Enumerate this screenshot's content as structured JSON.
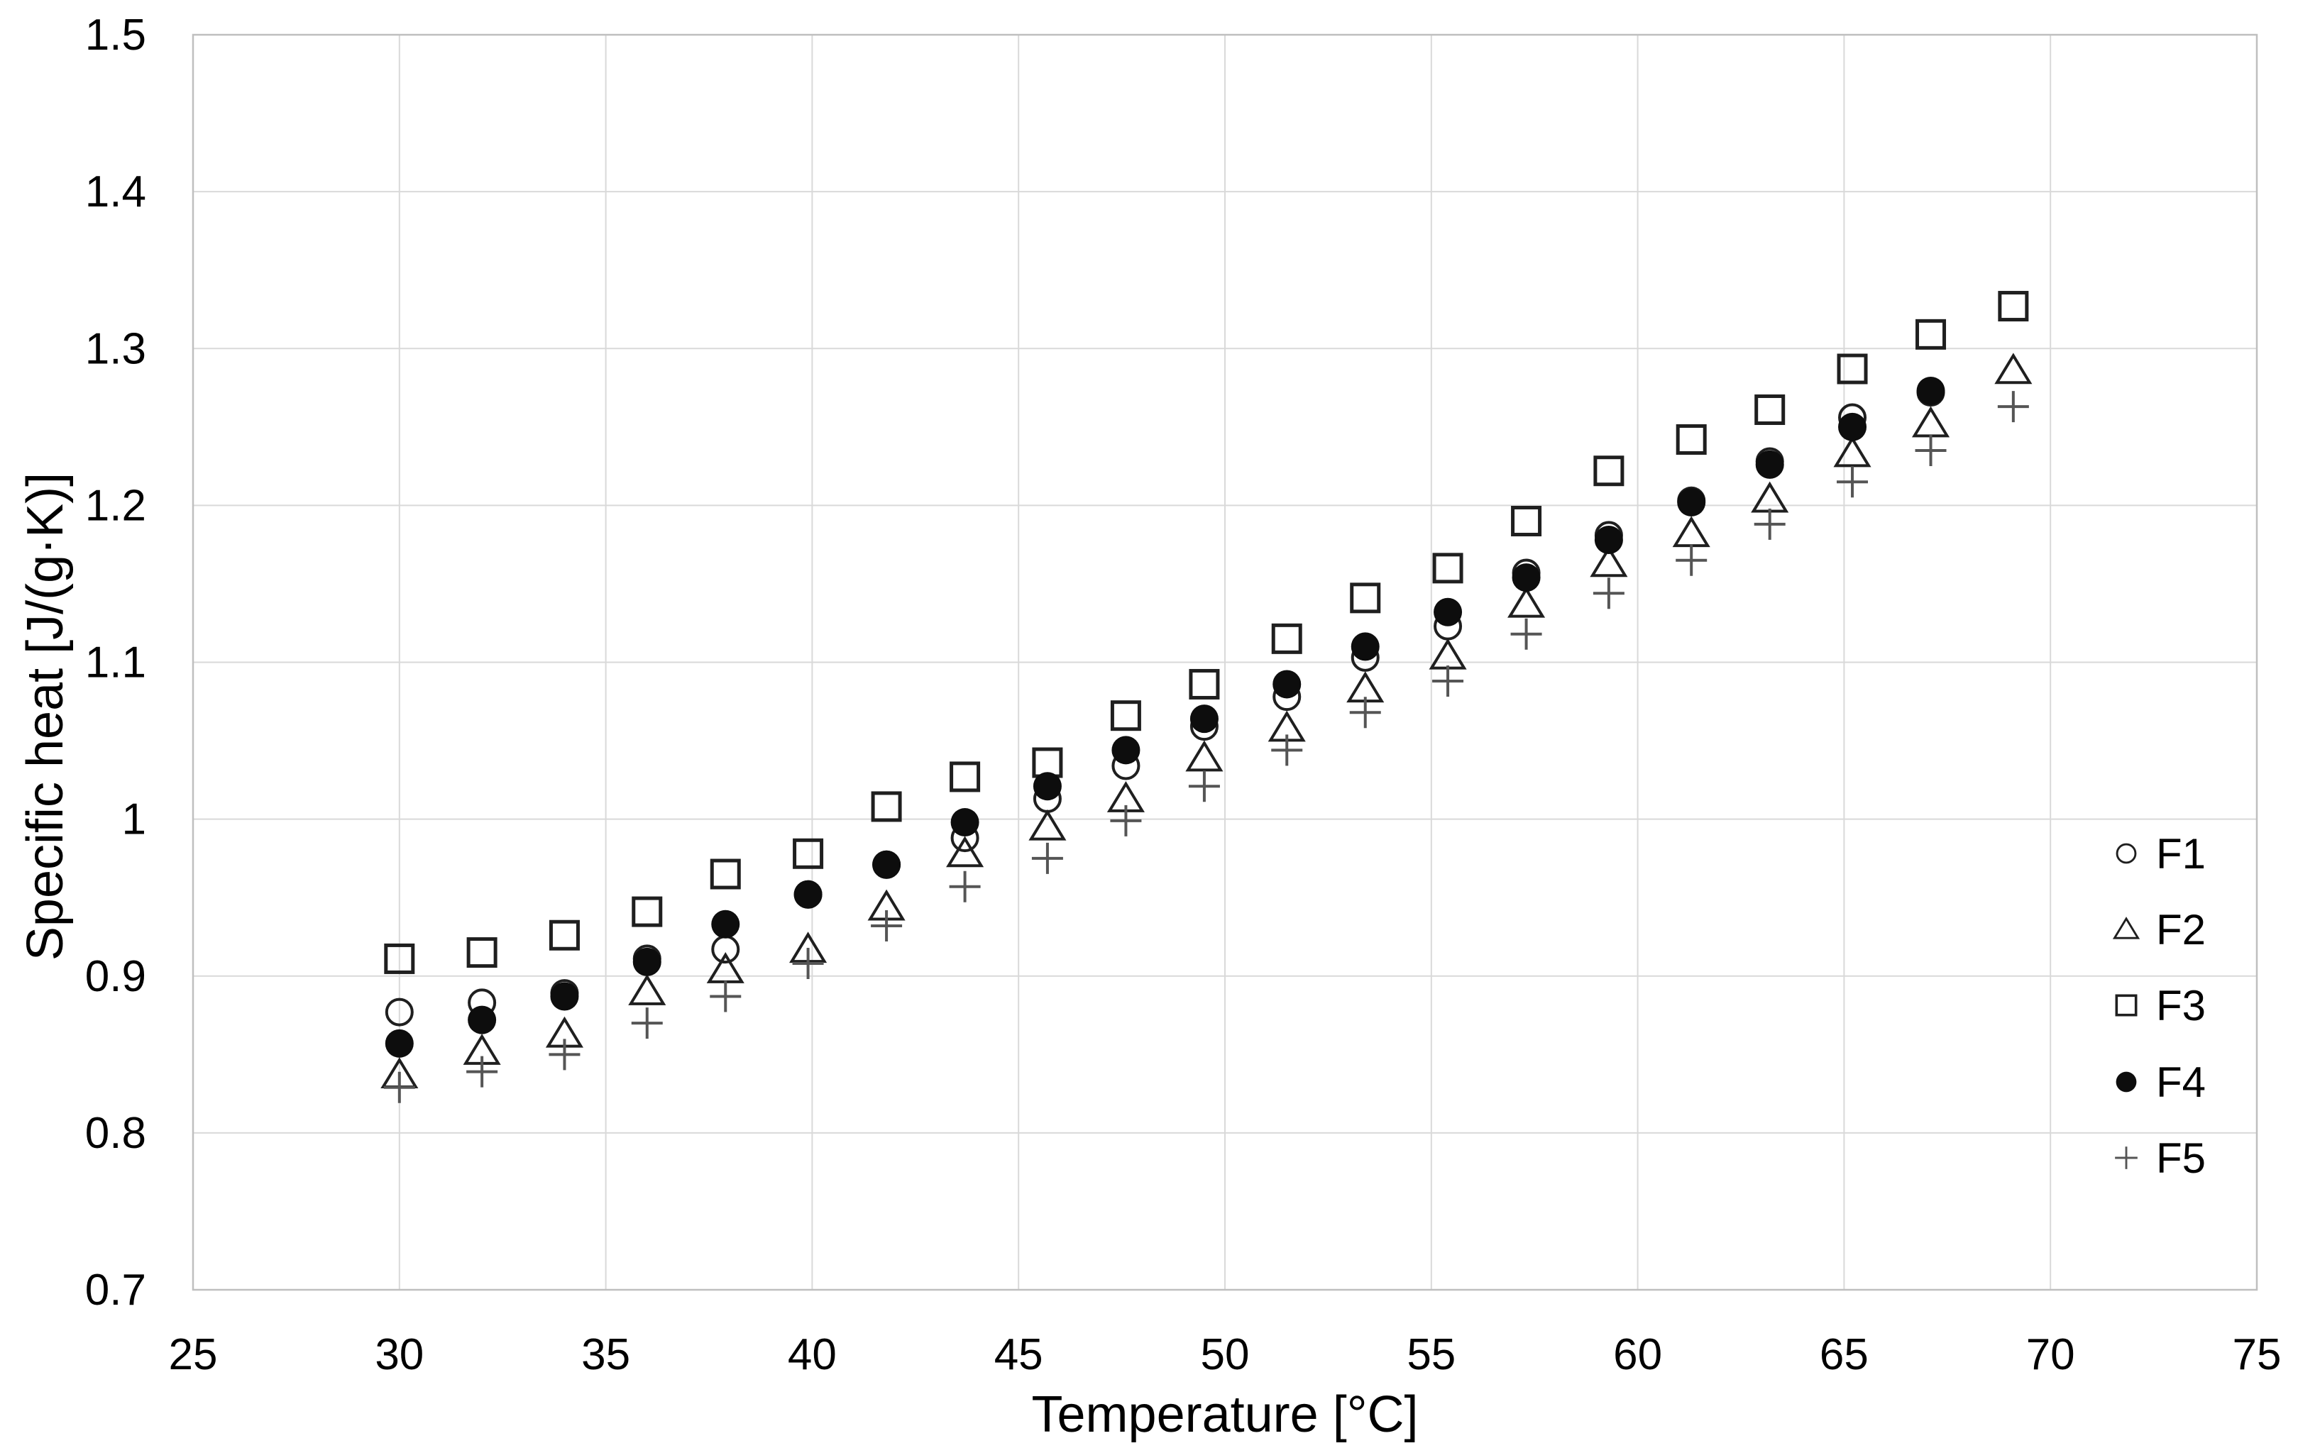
{
  "chart_data": {
    "type": "scatter",
    "title": "",
    "xlabel": "Temperature [°C]",
    "ylabel": "Specific heat [J/(g·K)]",
    "xlim": [
      25,
      75
    ],
    "ylim": [
      0.7,
      1.5
    ],
    "grid": true,
    "legend_position": "right-inside",
    "xticks": [
      {
        "v": 25,
        "label": "25"
      },
      {
        "v": 30,
        "label": "30"
      },
      {
        "v": 35,
        "label": "35"
      },
      {
        "v": 40,
        "label": "40"
      },
      {
        "v": 45,
        "label": "45"
      },
      {
        "v": 50,
        "label": "50"
      },
      {
        "v": 55,
        "label": "55"
      },
      {
        "v": 60,
        "label": "60"
      },
      {
        "v": 65,
        "label": "65"
      },
      {
        "v": 70,
        "label": "70"
      },
      {
        "v": 75,
        "label": "75"
      }
    ],
    "yticks": [
      {
        "v": 0.7,
        "label": "0.7"
      },
      {
        "v": 0.8,
        "label": "0.8"
      },
      {
        "v": 0.9,
        "label": "0.9"
      },
      {
        "v": 1.0,
        "label": "1"
      },
      {
        "v": 1.1,
        "label": "1.1"
      },
      {
        "v": 1.2,
        "label": "1.2"
      },
      {
        "v": 1.3,
        "label": "1.3"
      },
      {
        "v": 1.4,
        "label": "1.4"
      },
      {
        "v": 1.5,
        "label": "1.5"
      }
    ],
    "x": [
      30.0,
      32.0,
      34.0,
      36.0,
      37.9,
      39.9,
      41.8,
      43.7,
      45.7,
      47.6,
      49.5,
      51.5,
      53.4,
      55.4,
      57.3,
      59.3,
      61.3,
      63.2,
      65.2,
      67.1,
      69.1
    ],
    "series": [
      {
        "name": "F1",
        "marker": "open-circle",
        "values": [
          0.877,
          0.883,
          0.889,
          0.911,
          0.917,
          0.952,
          0.971,
          0.988,
          1.013,
          1.034,
          1.059,
          1.078,
          1.103,
          1.123,
          1.157,
          1.181,
          1.203,
          1.228,
          1.256,
          1.272,
          null
        ]
      },
      {
        "name": "F2",
        "marker": "open-triangle",
        "values": [
          0.837,
          0.852,
          0.863,
          0.89,
          0.904,
          0.917,
          0.944,
          0.978,
          0.995,
          1.013,
          1.039,
          1.058,
          1.083,
          1.104,
          1.137,
          1.163,
          1.182,
          1.204,
          1.233,
          1.252,
          1.286
        ]
      },
      {
        "name": "F3",
        "marker": "open-square",
        "values": [
          0.911,
          0.915,
          0.926,
          0.941,
          0.965,
          0.978,
          1.008,
          1.027,
          1.036,
          1.066,
          1.086,
          1.115,
          1.141,
          1.16,
          1.19,
          1.222,
          1.242,
          1.261,
          1.287,
          1.309,
          1.327
        ]
      },
      {
        "name": "F4",
        "marker": "filled-circle",
        "values": [
          0.857,
          0.872,
          0.887,
          0.909,
          0.933,
          0.952,
          0.971,
          0.998,
          1.021,
          1.044,
          1.064,
          1.086,
          1.11,
          1.132,
          1.154,
          1.178,
          1.202,
          1.226,
          1.25,
          1.273,
          null
        ]
      },
      {
        "name": "F5",
        "marker": "plus",
        "values": [
          0.829,
          0.839,
          0.85,
          0.87,
          0.887,
          0.908,
          0.932,
          0.957,
          0.975,
          0.999,
          1.021,
          1.044,
          1.068,
          1.088,
          1.118,
          1.144,
          1.165,
          1.188,
          1.215,
          1.235,
          1.263
        ]
      }
    ]
  },
  "legend": {
    "items": [
      {
        "label": "F1",
        "marker": "open-circle"
      },
      {
        "label": "F2",
        "marker": "open-triangle"
      },
      {
        "label": "F3",
        "marker": "open-square"
      },
      {
        "label": "F4",
        "marker": "filled-circle"
      },
      {
        "label": "F5",
        "marker": "plus"
      }
    ]
  },
  "style": {
    "marker_color": "#1f1f1f",
    "filled_marker_color": "#0d0d0d",
    "plus_marker_color": "#555555",
    "grid_color": "#d9d9d9",
    "border_color": "#bfbfbf",
    "text_color": "#000000",
    "background": "#ffffff"
  }
}
